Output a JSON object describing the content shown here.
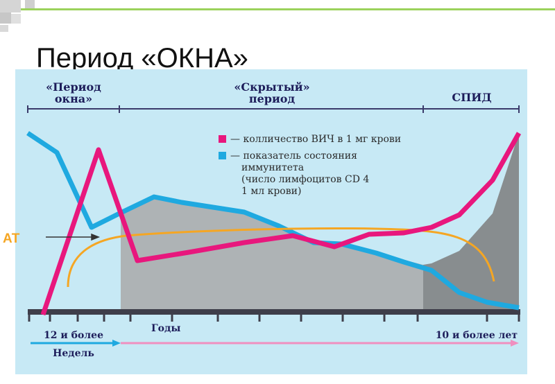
{
  "slide": {
    "title": "Период «ОКНА»"
  },
  "figure": {
    "periods": [
      {
        "label_line1": "«Период",
        "label_line2": "окна»"
      },
      {
        "label_line1": "«Скрытый»",
        "label_line2": "период"
      },
      {
        "label_line1": "СПИД"
      }
    ],
    "legend": [
      {
        "color": "#e8177d",
        "text_lines": [
          "— колличество ВИЧ в 1 мг крови"
        ]
      },
      {
        "color": "#1fa9e0",
        "text_lines": [
          "— показатель состояния",
          "иммунитета",
          "(число лимфоцитов CD 4",
          "1 мл крови)"
        ]
      }
    ],
    "at_label": "АТ",
    "axis": {
      "weeks_top": "12 и более",
      "weeks_bottom": "Недель",
      "years": "Годы",
      "years_end": "10 и более лет"
    },
    "colors": {
      "hiv": "#e8177d",
      "immunity": "#1fa9e0",
      "antibodies": "#f5a623",
      "background": "#c7e9f5"
    }
  }
}
